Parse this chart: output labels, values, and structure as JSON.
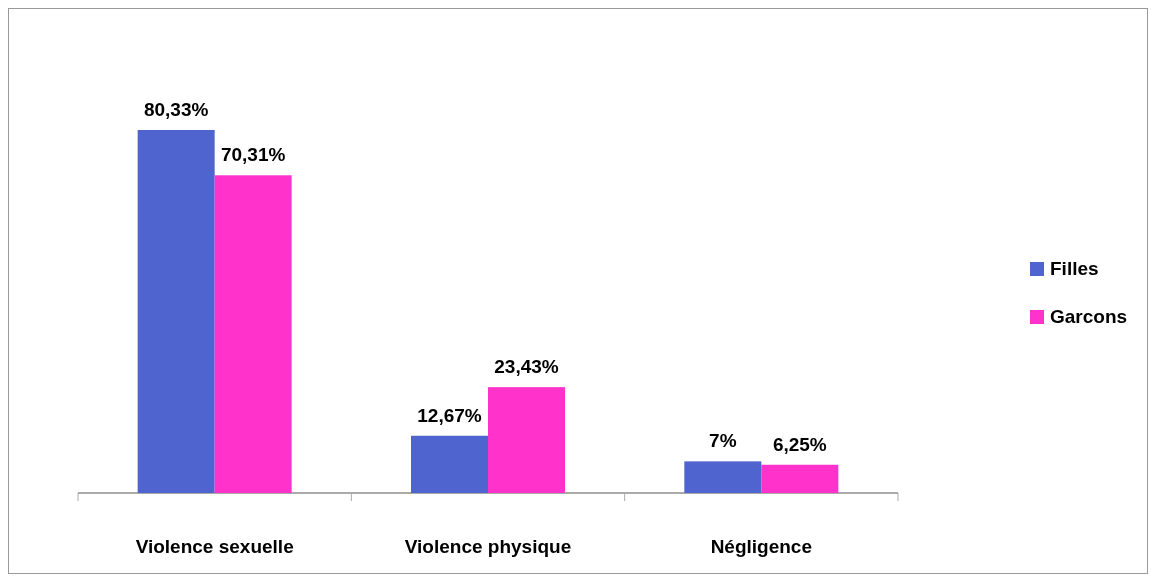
{
  "chart_data": {
    "type": "bar",
    "categories": [
      "Violence sexuelle",
      "Violence physique",
      "Négligence"
    ],
    "series": [
      {
        "name": "Filles",
        "color": "#5064d0",
        "values": [
          80.33,
          12.67,
          7
        ],
        "value_labels": [
          "80,33%",
          "12,67%",
          "7%"
        ]
      },
      {
        "name": "Garcons",
        "color": "#ff33cc",
        "values": [
          70.31,
          23.43,
          6.25
        ],
        "value_labels": [
          "70,31%",
          "23,43%",
          "6,25%"
        ]
      }
    ],
    "legend": "right"
  }
}
